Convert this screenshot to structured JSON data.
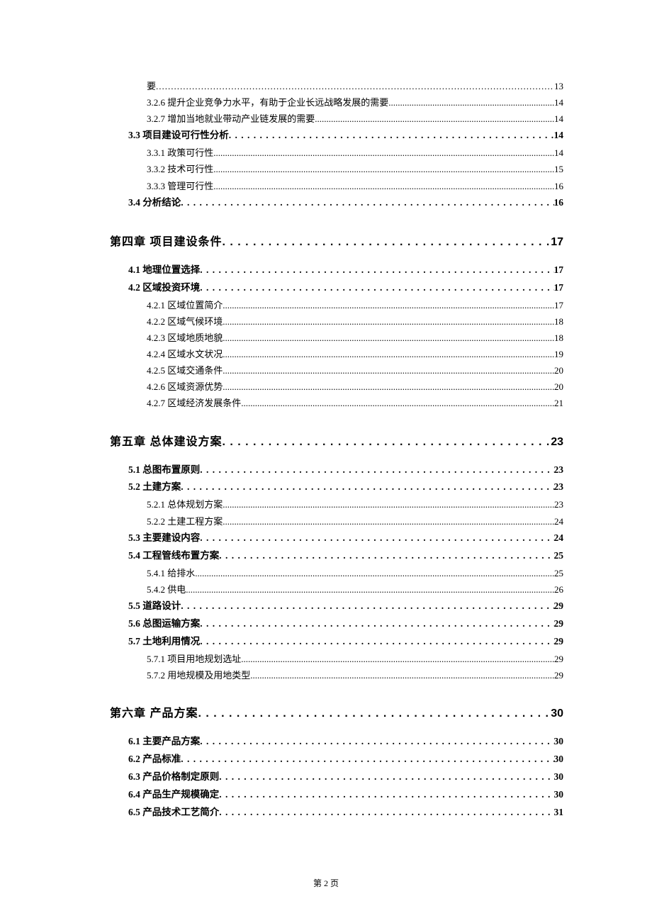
{
  "footer": {
    "text": "第 2 页"
  },
  "dots": {
    "heavy": " . . . . . . . . . . . . . . . . . . . . . . . . . . . . . . . . . . . . . . . . . . . . . . . . . . . . . . . . . . . . . . . . . . . . . . . . . . . . . . . . . . . . . . . . . . . . . . . . . . . . . . . . . . . . . . . . . . . . . . . . . . . . . . . . . . . . . . . . . . . . . . . . . . . . . . . . . . . . . . . . . . . . . . . . . . . . . . . . . . . .",
    "light": "......................................................................................................................................................................................................................................................................................................"
  },
  "entries": [
    {
      "level": "2-hang",
      "title": "要",
      "page": "13"
    },
    {
      "level": "2",
      "title": "3.2.6 提升企业竞争力水平，有助于企业长远战略发展的需要",
      "page": "14"
    },
    {
      "level": "2",
      "title": "3.2.7 增加当地就业带动产业链发展的需要",
      "page": "14"
    },
    {
      "level": "1",
      "title": "3.3 项目建设可行性分析",
      "page": "14"
    },
    {
      "level": "2",
      "title": "3.3.1 政策可行性",
      "page": "14"
    },
    {
      "level": "2",
      "title": "3.3.2 技术可行性",
      "page": "15"
    },
    {
      "level": "2",
      "title": "3.3.3 管理可行性",
      "page": "16"
    },
    {
      "level": "1",
      "title": "3.4 分析结论",
      "page": "16"
    },
    {
      "level": "chapter",
      "title": "第四章 项目建设条件",
      "page": "17"
    },
    {
      "level": "1",
      "title": "4.1 地理位置选择",
      "page": "17"
    },
    {
      "level": "1",
      "title": "4.2 区域投资环境",
      "page": "17"
    },
    {
      "level": "2",
      "title": "4.2.1 区域位置简介",
      "page": "17"
    },
    {
      "level": "2",
      "title": "4.2.2 区域气候环境",
      "page": "18"
    },
    {
      "level": "2",
      "title": "4.2.3 区域地质地貌",
      "page": "18"
    },
    {
      "level": "2",
      "title": "4.2.4 区域水文状况",
      "page": "19"
    },
    {
      "level": "2",
      "title": "4.2.5 区域交通条件",
      "page": "20"
    },
    {
      "level": "2",
      "title": "4.2.6 区域资源优势",
      "page": "20"
    },
    {
      "level": "2",
      "title": "4.2.7 区域经济发展条件",
      "page": "21"
    },
    {
      "level": "chapter",
      "title": "第五章 总体建设方案",
      "page": "23"
    },
    {
      "level": "1",
      "title": "5.1 总图布置原则",
      "page": "23"
    },
    {
      "level": "1",
      "title": "5.2 土建方案",
      "page": "23"
    },
    {
      "level": "2",
      "title": "5.2.1 总体规划方案",
      "page": "23"
    },
    {
      "level": "2",
      "title": "5.2.2 土建工程方案",
      "page": "24"
    },
    {
      "level": "1",
      "title": "5.3 主要建设内容",
      "page": "24"
    },
    {
      "level": "1",
      "title": "5.4 工程管线布置方案",
      "page": "25"
    },
    {
      "level": "2",
      "title": "5.4.1 给排水",
      "page": "25"
    },
    {
      "level": "2",
      "title": "5.4.2 供电",
      "page": "26"
    },
    {
      "level": "1",
      "title": "5.5 道路设计",
      "page": "29"
    },
    {
      "level": "1",
      "title": "5.6 总图运输方案",
      "page": "29"
    },
    {
      "level": "1",
      "title": "5.7 土地利用情况",
      "page": "29"
    },
    {
      "level": "2",
      "title": "5.7.1 项目用地规划选址",
      "page": "29"
    },
    {
      "level": "2",
      "title": "5.7.2 用地规模及用地类型",
      "page": "29"
    },
    {
      "level": "chapter",
      "title": "第六章 产品方案",
      "page": "30"
    },
    {
      "level": "1",
      "title": "6.1 主要产品方案",
      "page": "30"
    },
    {
      "level": "1",
      "title": "6.2 产品标准",
      "page": "30"
    },
    {
      "level": "1",
      "title": "6.3 产品价格制定原则",
      "page": "30"
    },
    {
      "level": "1",
      "title": "6.4 产品生产规模确定",
      "page": "30"
    },
    {
      "level": "1",
      "title": "6.5 产品技术工艺简介",
      "page": "31"
    }
  ]
}
